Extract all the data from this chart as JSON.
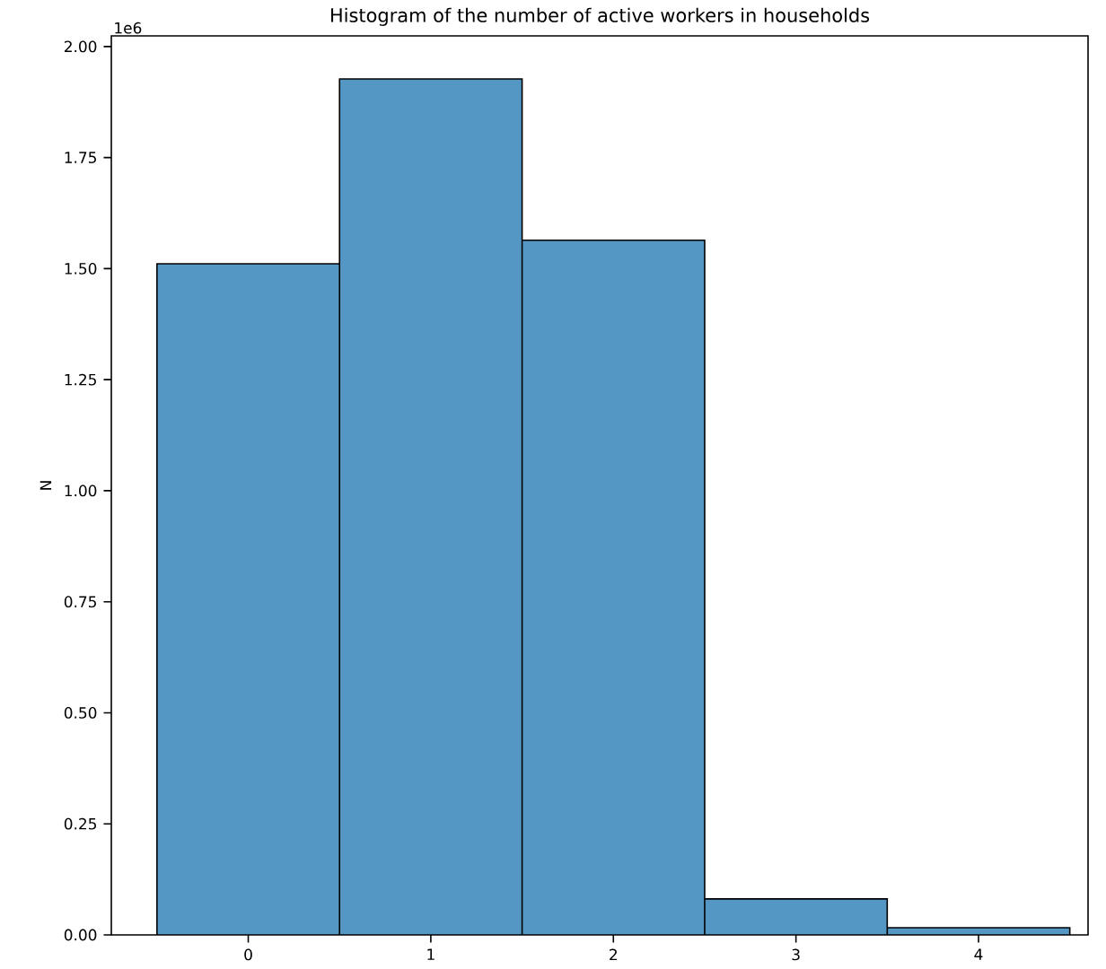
{
  "chart_data": {
    "type": "histogram",
    "title": "Histogram of the number of active workers in households",
    "ylabel": "N",
    "bins": [
      -0.5,
      0.5,
      1.5,
      2.5,
      3.5,
      4.5
    ],
    "values": [
      1.511,
      1.927,
      1.564,
      0.081,
      0.016
    ],
    "color": "#5497c5",
    "xlim": [
      -0.75,
      4.6
    ],
    "ylim": [
      0,
      2.024
    ],
    "xticks": [
      0,
      1,
      2,
      3,
      4
    ],
    "yticks": [
      {
        "value": 0,
        "label": "0.00"
      },
      {
        "value": 0.25,
        "label": "0.25"
      },
      {
        "value": 0.5,
        "label": "0.50"
      },
      {
        "value": 0.75,
        "label": "0.75"
      },
      {
        "value": 1.0,
        "label": "1.00"
      },
      {
        "value": 1.25,
        "label": "1.25"
      },
      {
        "value": 1.5,
        "label": "1.50"
      },
      {
        "value": 1.75,
        "label": "1.75"
      },
      {
        "value": 2.0,
        "label": "2.00"
      }
    ],
    "annotations": [
      "1e6"
    ],
    "grid": false
  }
}
